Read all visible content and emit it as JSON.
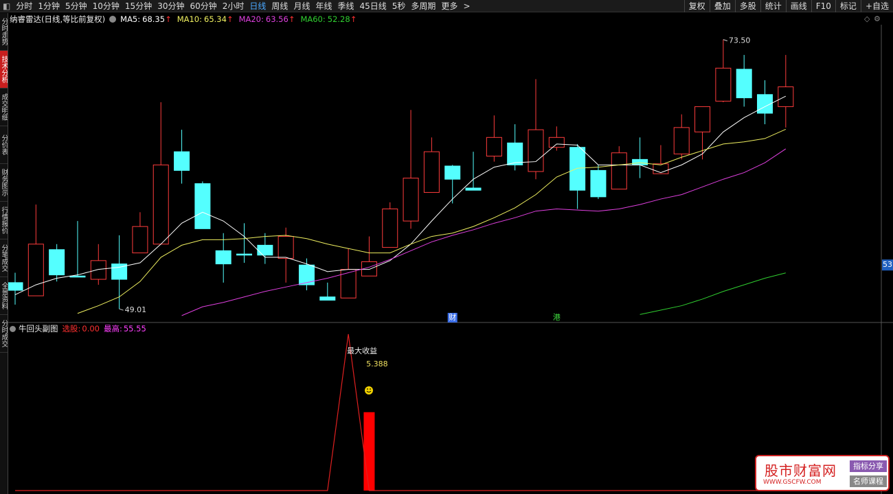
{
  "toolbar": {
    "periods": [
      "分时",
      "1分钟",
      "5分钟",
      "10分钟",
      "15分钟",
      "30分钟",
      "60分钟",
      "2小时",
      "日线",
      "周线",
      "月线",
      "年线",
      "季线",
      "45日线",
      "5秒",
      "多周期"
    ],
    "active": 8,
    "more": "更多",
    "more_arrow": ">",
    "tools": [
      "复权",
      "叠加",
      "多股",
      "统计",
      "画线",
      "F10",
      "标记",
      "+自选"
    ]
  },
  "sidebar": {
    "tabs": [
      "分时走势",
      "技术分析",
      "成交明细",
      "分价表",
      "财务图示",
      "行情报价",
      "分笔成交",
      "全景资料",
      "分时成交"
    ],
    "active": 1
  },
  "watermark": {
    "name": "股市财富网",
    "url": "WWW.GSCFW.COM",
    "tags": [
      "指标分享",
      "名师课程"
    ]
  },
  "chart_data": [
    {
      "type": "candlestick",
      "title": "纳睿雷达(日线,等比前复权)",
      "up_color": "#ff3c3c",
      "down_color": "#54ffff",
      "ylim": [
        47.9,
        74.6
      ],
      "up_arrow": "↑",
      "open": [
        51.4,
        50.2,
        54.4,
        52.0,
        51.7,
        53.1,
        54.1,
        54.9,
        63.3,
        60.4,
        54.3,
        54.0,
        54.8,
        53.6,
        53.0,
        50.1,
        50.0,
        52.0,
        54.6,
        57.0,
        59.6,
        62.0,
        60.0,
        62.9,
        64.1,
        61.5,
        63.7,
        63.7,
        61.6,
        59.9,
        62.6,
        61.3,
        63.1,
        65.1,
        67.9,
        70.8,
        68.5,
        67.4
      ],
      "high": [
        52.3,
        58.5,
        54.9,
        57.0,
        54.9,
        55.7,
        57.8,
        67.8,
        65.3,
        60.6,
        55.9,
        56.8,
        55.9,
        56.4,
        53.6,
        51.4,
        54.5,
        55.6,
        58.7,
        67.1,
        64.6,
        62.1,
        63.3,
        66.6,
        65.8,
        69.9,
        65.6,
        64.0,
        62.1,
        63.8,
        64.6,
        63.9,
        66.7,
        67.4,
        73.5,
        72.1,
        69.8,
        72.1
      ],
      "low": [
        49.4,
        50.2,
        51.5,
        51.9,
        51.2,
        49.01,
        54.1,
        54.9,
        60.4,
        56.3,
        51.4,
        53.2,
        53.1,
        51.4,
        50.7,
        49.8,
        50.0,
        52.0,
        54.6,
        56.3,
        59.6,
        58.6,
        59.8,
        62.4,
        61.6,
        60.8,
        63.4,
        58.1,
        59.0,
        59.9,
        60.9,
        61.3,
        62.6,
        62.6,
        67.8,
        67.4,
        65.8,
        65.5
      ],
      "close": [
        50.7,
        54.9,
        52.1,
        51.9,
        53.4,
        51.7,
        56.5,
        62.1,
        61.6,
        56.3,
        53.1,
        53.9,
        53.9,
        55.6,
        51.2,
        49.8,
        52.6,
        53.3,
        58.1,
        60.9,
        63.3,
        60.8,
        59.8,
        64.6,
        62.1,
        65.3,
        64.6,
        59.8,
        59.2,
        63.2,
        62.1,
        62.2,
        65.5,
        67.4,
        70.9,
        68.2,
        66.8,
        69.2
      ],
      "series": [
        {
          "name": "MA5:",
          "color": "#ffffff",
          "values": [
            50.3,
            51.2,
            51.8,
            52.1,
            52.6,
            52.8,
            53.2,
            54.9,
            56.8,
            57.8,
            57.0,
            55.6,
            53.7,
            53.7,
            53.1,
            52.4,
            52.6,
            52.6,
            53.4,
            54.9,
            57.0,
            59.0,
            60.8,
            61.9,
            62.3,
            62.4,
            64.0,
            63.9,
            62.1,
            62.1,
            62.1,
            61.4,
            62.1,
            63.1,
            65.1,
            66.4,
            67.4,
            68.35
          ]
        },
        {
          "name": "MA10:",
          "color": "#f0f060",
          "values": [
            null,
            null,
            null,
            48.6,
            49.3,
            50.1,
            51.5,
            53.7,
            54.8,
            55.3,
            55.3,
            55.4,
            55.6,
            55.7,
            55.4,
            54.9,
            54.5,
            54.1,
            54.1,
            54.9,
            55.6,
            55.9,
            56.5,
            57.3,
            58.2,
            59.4,
            61.0,
            61.8,
            61.9,
            62.1,
            62.3,
            62.1,
            62.8,
            63.4,
            64.0,
            64.2,
            64.5,
            65.34
          ]
        },
        {
          "name": "MA20:",
          "color": "#e040e0",
          "values": [
            null,
            null,
            null,
            null,
            null,
            null,
            null,
            null,
            48.4,
            49.2,
            49.6,
            50.1,
            50.6,
            51.0,
            51.4,
            51.8,
            52.3,
            52.8,
            53.5,
            54.3,
            55.1,
            55.7,
            56.2,
            56.8,
            57.3,
            57.9,
            58.1,
            58.0,
            57.9,
            58.1,
            58.5,
            59.0,
            59.4,
            60.1,
            60.8,
            61.4,
            62.3,
            63.56
          ]
        },
        {
          "name": "MA60:",
          "color": "#30d030",
          "values": [
            null,
            null,
            null,
            null,
            null,
            null,
            null,
            null,
            null,
            null,
            null,
            null,
            null,
            null,
            null,
            null,
            null,
            null,
            null,
            null,
            null,
            null,
            null,
            null,
            null,
            null,
            null,
            null,
            null,
            null,
            48.5,
            48.9,
            49.3,
            49.9,
            50.6,
            51.2,
            51.8,
            52.28
          ]
        }
      ],
      "annotations": [
        {
          "index": 34,
          "value": 73.5,
          "label": "73.50"
        },
        {
          "index": 5,
          "value": 49.01,
          "label": "49.01"
        }
      ],
      "price_marker": 53,
      "events": [
        {
          "index": 21,
          "label": "财",
          "color": "#3a6ee8"
        },
        {
          "index": 26,
          "label": "港",
          "color": "#40e040"
        }
      ]
    },
    {
      "type": "line_bar",
      "title": "牛回头副图",
      "ylim": [
        0,
        5.6
      ],
      "indicators": [
        {
          "name": "选股:",
          "value": "0.00",
          "color": "#ff3030"
        },
        {
          "name": "最高:",
          "value": "55.55",
          "color": "#ff40ff"
        }
      ],
      "line": {
        "color": "#e02020",
        "values": [
          0,
          0,
          0,
          0,
          0,
          0,
          0,
          0,
          0,
          0,
          0,
          0,
          0,
          0,
          0,
          0,
          5.388,
          0,
          0,
          0,
          0,
          0,
          0,
          0,
          0,
          0,
          0,
          0,
          0,
          0,
          0,
          0,
          0,
          0,
          0,
          0,
          0,
          0
        ]
      },
      "bars": {
        "color": "#ff0000",
        "values": [
          null,
          null,
          null,
          null,
          null,
          null,
          null,
          null,
          null,
          null,
          null,
          null,
          null,
          null,
          null,
          null,
          null,
          2.7,
          null,
          null,
          null,
          null,
          null,
          null,
          null,
          null,
          null,
          null,
          null,
          null,
          null,
          null,
          null,
          null,
          null,
          null,
          null,
          null
        ]
      },
      "annotation": {
        "index": 16,
        "title": "最大收益"
      }
    }
  ]
}
